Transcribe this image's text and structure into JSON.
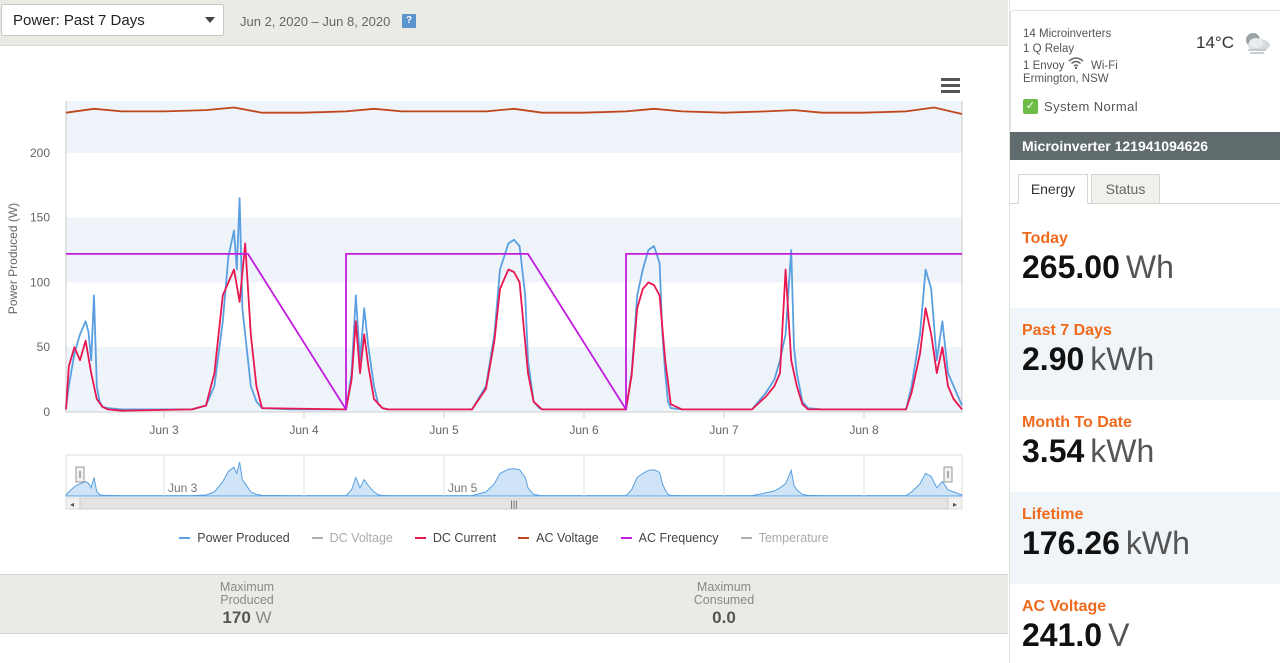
{
  "header": {
    "range_label": "Power: Past 7 Days",
    "date_range": "Jun 2, 2020 – Jun 8, 2020",
    "help_label": "?"
  },
  "chart_data": {
    "type": "line",
    "ylabel": "Power Produced (W)",
    "yticks": [
      "0",
      "50",
      "100",
      "150",
      "200"
    ],
    "ylim": [
      0,
      240
    ],
    "xticks": [
      "Jun 3",
      "Jun 4",
      "Jun 5",
      "Jun 6",
      "Jun 7",
      "Jun 8"
    ],
    "xlim": [
      2.3,
      8.7
    ],
    "navigator_labels": [
      "Jun 3",
      "Jun 5"
    ],
    "legend_position": "bottom",
    "series": [
      {
        "name": "Power Produced",
        "color": "#5aa0e0",
        "visible": true,
        "x": [
          2.3,
          2.32,
          2.36,
          2.4,
          2.44,
          2.46,
          2.48,
          2.5,
          2.52,
          2.54,
          2.56,
          2.6,
          2.7,
          3.2,
          3.3,
          3.36,
          3.42,
          3.46,
          3.5,
          3.52,
          3.54,
          3.56,
          3.58,
          3.6,
          3.62,
          3.66,
          3.7,
          3.9,
          4.3,
          4.34,
          4.37,
          4.4,
          4.43,
          4.46,
          4.5,
          4.53,
          4.56,
          4.6,
          4.7,
          5.2,
          5.3,
          5.36,
          5.4,
          5.46,
          5.5,
          5.54,
          5.58,
          5.6,
          5.64,
          5.68,
          5.7,
          6.3,
          6.34,
          6.38,
          6.42,
          6.46,
          6.5,
          6.54,
          6.56,
          6.58,
          6.6,
          6.62,
          6.7,
          7.2,
          7.3,
          7.36,
          7.4,
          7.44,
          7.48,
          7.5,
          7.52,
          7.56,
          7.6,
          7.7,
          8.3,
          8.34,
          8.4,
          8.44,
          8.48,
          8.52,
          8.56,
          8.6,
          8.64,
          8.7
        ],
        "y": [
          3,
          20,
          45,
          60,
          70,
          62,
          40,
          90,
          20,
          8,
          4,
          3,
          2,
          2,
          5,
          20,
          70,
          120,
          140,
          110,
          165,
          80,
          60,
          40,
          20,
          8,
          3,
          2,
          2,
          30,
          90,
          40,
          80,
          50,
          20,
          6,
          3,
          2,
          2,
          2,
          20,
          60,
          110,
          130,
          133,
          128,
          90,
          40,
          8,
          3,
          2,
          2,
          30,
          90,
          110,
          125,
          128,
          115,
          60,
          30,
          8,
          3,
          2,
          2,
          15,
          25,
          40,
          60,
          125,
          50,
          30,
          8,
          3,
          2,
          2,
          20,
          60,
          110,
          95,
          40,
          70,
          30,
          20,
          5
        ]
      },
      {
        "name": "DC Voltage",
        "color": "#b0b0b0",
        "visible": false,
        "x": [],
        "y": []
      },
      {
        "name": "DC Current",
        "color": "#e8174f",
        "visible": true,
        "x": [
          2.3,
          2.32,
          2.36,
          2.4,
          2.44,
          2.48,
          2.52,
          2.56,
          2.6,
          2.7,
          3.2,
          3.3,
          3.36,
          3.42,
          3.46,
          3.5,
          3.54,
          3.58,
          3.62,
          3.66,
          3.7,
          4.3,
          4.34,
          4.37,
          4.4,
          4.43,
          4.46,
          4.5,
          4.56,
          4.6,
          5.2,
          5.3,
          5.36,
          5.4,
          5.46,
          5.5,
          5.54,
          5.6,
          5.64,
          5.7,
          6.3,
          6.34,
          6.38,
          6.42,
          6.46,
          6.5,
          6.54,
          6.58,
          6.62,
          6.7,
          7.2,
          7.3,
          7.36,
          7.4,
          7.44,
          7.48,
          7.52,
          7.56,
          7.6,
          8.3,
          8.34,
          8.4,
          8.44,
          8.48,
          8.52,
          8.56,
          8.6,
          8.64,
          8.7
        ],
        "y": [
          2,
          35,
          50,
          40,
          55,
          30,
          10,
          4,
          2,
          1,
          2,
          5,
          30,
          90,
          100,
          110,
          85,
          130,
          60,
          20,
          3,
          2,
          25,
          70,
          30,
          60,
          35,
          10,
          3,
          2,
          2,
          18,
          55,
          95,
          110,
          108,
          100,
          30,
          8,
          2,
          2,
          28,
          80,
          95,
          100,
          98,
          90,
          40,
          6,
          2,
          2,
          12,
          20,
          30,
          110,
          40,
          20,
          6,
          2,
          2,
          15,
          45,
          80,
          60,
          30,
          50,
          20,
          10,
          2
        ]
      },
      {
        "name": "AC Voltage",
        "color": "#c0461b",
        "visible": true,
        "x": [
          2.3,
          2.5,
          2.7,
          3.0,
          3.3,
          3.5,
          3.7,
          4.0,
          4.3,
          4.5,
          4.7,
          5.0,
          5.3,
          5.5,
          5.7,
          6.0,
          6.3,
          6.5,
          6.7,
          7.0,
          7.3,
          7.5,
          7.7,
          8.0,
          8.3,
          8.5,
          8.7
        ],
        "y": [
          231,
          234,
          232,
          232,
          233,
          235,
          231,
          231,
          232,
          234,
          232,
          232,
          232,
          234,
          231,
          231,
          232,
          234,
          232,
          231,
          232,
          233,
          231,
          231,
          232,
          235,
          230
        ]
      },
      {
        "name": "AC Frequency",
        "color": "#c21cdf",
        "visible": true,
        "x": [
          2.3,
          3.5,
          3.6,
          4.3,
          4.3,
          4.5,
          5.6,
          6.3,
          6.3,
          6.5,
          7.4,
          7.5,
          8.3,
          8.5,
          8.7
        ],
        "y": [
          122,
          122,
          122,
          2,
          122,
          122,
          122,
          2,
          122,
          122,
          122,
          122,
          122,
          122,
          122
        ]
      },
      {
        "name": "Temperature",
        "color": "#b0b0b0",
        "visible": false,
        "x": [],
        "y": []
      }
    ]
  },
  "stats": {
    "max_produced_label_1": "Maximum",
    "max_produced_label_2": "Produced",
    "max_produced_value": "170",
    "max_produced_unit": "W",
    "max_consumed_label_1": "Maximum",
    "max_consumed_label_2": "Consumed",
    "max_consumed_value": "0.0"
  },
  "site": {
    "microinverters": "14 Microinverters",
    "relay": "1 Q Relay",
    "envoy_prefix": "1 Envoy",
    "envoy_suffix": "Wi-Fi",
    "location": "Ermington, NSW",
    "temperature": "14°C",
    "weather_icon": "partly-cloudy-icon",
    "status": "System Normal"
  },
  "inverter": {
    "title": "Microinverter 121941094626",
    "tabs": [
      "Energy",
      "Status"
    ],
    "metrics": [
      {
        "label": "Today",
        "value": "265.00",
        "unit": "Wh"
      },
      {
        "label": "Past 7 Days",
        "value": "2.90",
        "unit": "kWh"
      },
      {
        "label": "Month To Date",
        "value": "3.54",
        "unit": "kWh"
      },
      {
        "label": "Lifetime",
        "value": "176.26",
        "unit": "kWh"
      },
      {
        "label": "AC Voltage",
        "value": "241.0",
        "unit": "V"
      }
    ]
  },
  "colors": {
    "accent_orange": "#f06a1d",
    "header_slate": "#5f6b6d",
    "status_green": "#6cbd45"
  }
}
